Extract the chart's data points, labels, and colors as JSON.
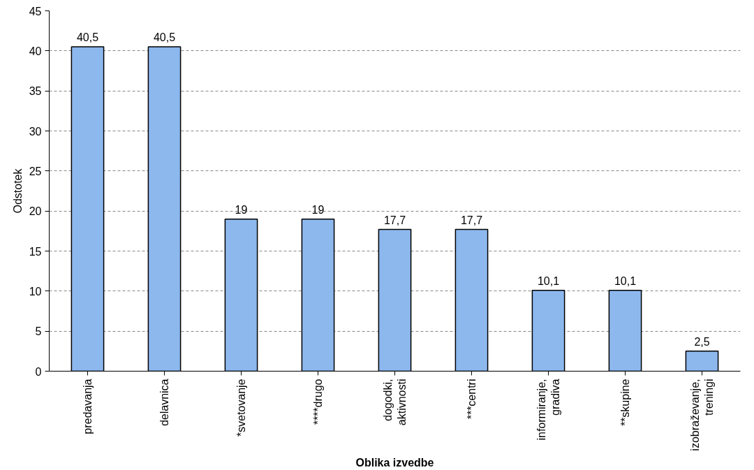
{
  "chart_data": {
    "type": "bar",
    "xlabel": "Oblika izvedbe",
    "ylabel": "Odstotek",
    "categories": [
      "predavanja",
      "delavnica",
      "*svetovanje",
      "****drugo",
      "dogodki, aktivnosti",
      "***centri",
      "informiranje, gradiva",
      "**skupine",
      "izobraževanje, treningi"
    ],
    "values": [
      40.5,
      40.5,
      19,
      19,
      17.7,
      17.7,
      10.1,
      10.1,
      2.5
    ],
    "value_labels": [
      "40,5",
      "40,5",
      "19",
      "19",
      "17,7",
      "17,7",
      "10,1",
      "10,1",
      "2,5"
    ],
    "color": "#8db8ee",
    "ylim": [
      0,
      45
    ],
    "yticks": [
      0,
      5,
      10,
      15,
      20,
      25,
      30,
      35,
      40,
      45
    ],
    "grid": "y"
  }
}
